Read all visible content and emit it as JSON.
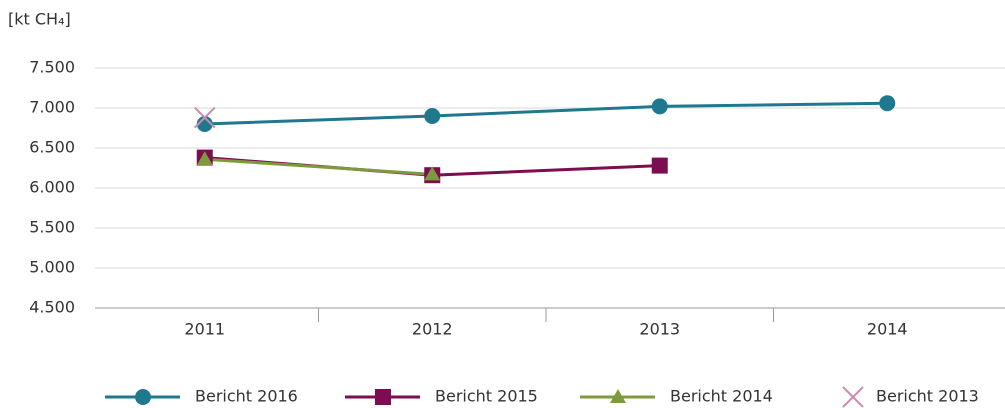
{
  "chart_data": {
    "type": "line",
    "y_label": "[kt CH₄]",
    "categories": [
      "2011",
      "2012",
      "2013",
      "2014"
    ],
    "series": [
      {
        "name": "Bericht 2016",
        "color": "#20788e",
        "marker": "circle",
        "line": true,
        "values": [
          6800,
          6900,
          7020,
          7060
        ]
      },
      {
        "name": "Bericht 2015",
        "color": "#7b0d50",
        "marker": "square",
        "line": true,
        "values": [
          6380,
          6160,
          6280,
          null
        ]
      },
      {
        "name": "Bericht 2014",
        "color": "#7f9a3d",
        "marker": "triangle",
        "line": true,
        "values": [
          6360,
          6170,
          null,
          null
        ]
      },
      {
        "name": "Bericht 2013",
        "color": "#c88db3",
        "marker": "x",
        "line": false,
        "values": [
          6880,
          null,
          null,
          null
        ]
      }
    ],
    "ylim": [
      4500,
      7500
    ],
    "yticks": [
      {
        "value": 4500,
        "label": "4.500"
      },
      {
        "value": 5000,
        "label": "5.000"
      },
      {
        "value": 5500,
        "label": "5.500"
      },
      {
        "value": 6000,
        "label": "6.000"
      },
      {
        "value": 6500,
        "label": "6.500"
      },
      {
        "value": 7000,
        "label": "7.000"
      },
      {
        "value": 7500,
        "label": "7.500"
      }
    ],
    "grid": true,
    "legend": "bottom"
  }
}
